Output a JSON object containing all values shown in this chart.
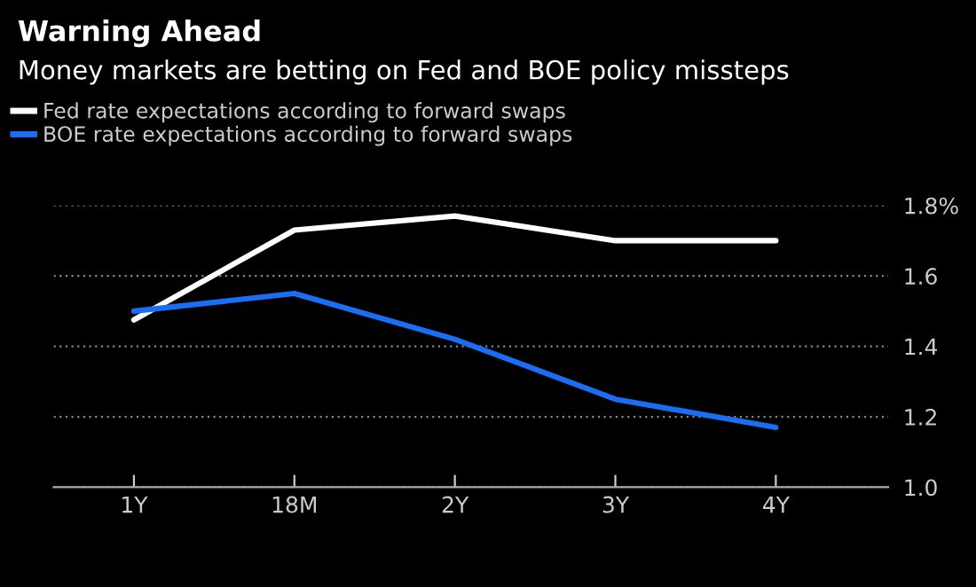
{
  "chart_data": {
    "type": "line",
    "title": "Warning Ahead",
    "subtitle": "Money markets are betting on Fed and BOE policy missteps",
    "categories": [
      "1Y",
      "18M",
      "2Y",
      "3Y",
      "4Y"
    ],
    "series": [
      {
        "name": "Fed rate expectations according to forward swaps",
        "color": "#ffffff",
        "values": [
          1.475,
          1.73,
          1.77,
          1.7,
          1.7
        ]
      },
      {
        "name": "BOE rate expectations according to forward swaps",
        "color": "#1a6ef5",
        "values": [
          1.5,
          1.55,
          1.42,
          1.25,
          1.17
        ]
      }
    ],
    "ylim": [
      1.0,
      1.8
    ],
    "yticks": [
      {
        "value": 1.0,
        "label": "1.0"
      },
      {
        "value": 1.2,
        "label": "1.2"
      },
      {
        "value": 1.4,
        "label": "1.4"
      },
      {
        "value": 1.6,
        "label": "1.6"
      },
      {
        "value": 1.8,
        "label": "1.8%"
      }
    ],
    "grid": "y",
    "legend": "top left",
    "marker": "none",
    "line_style": "solid"
  }
}
